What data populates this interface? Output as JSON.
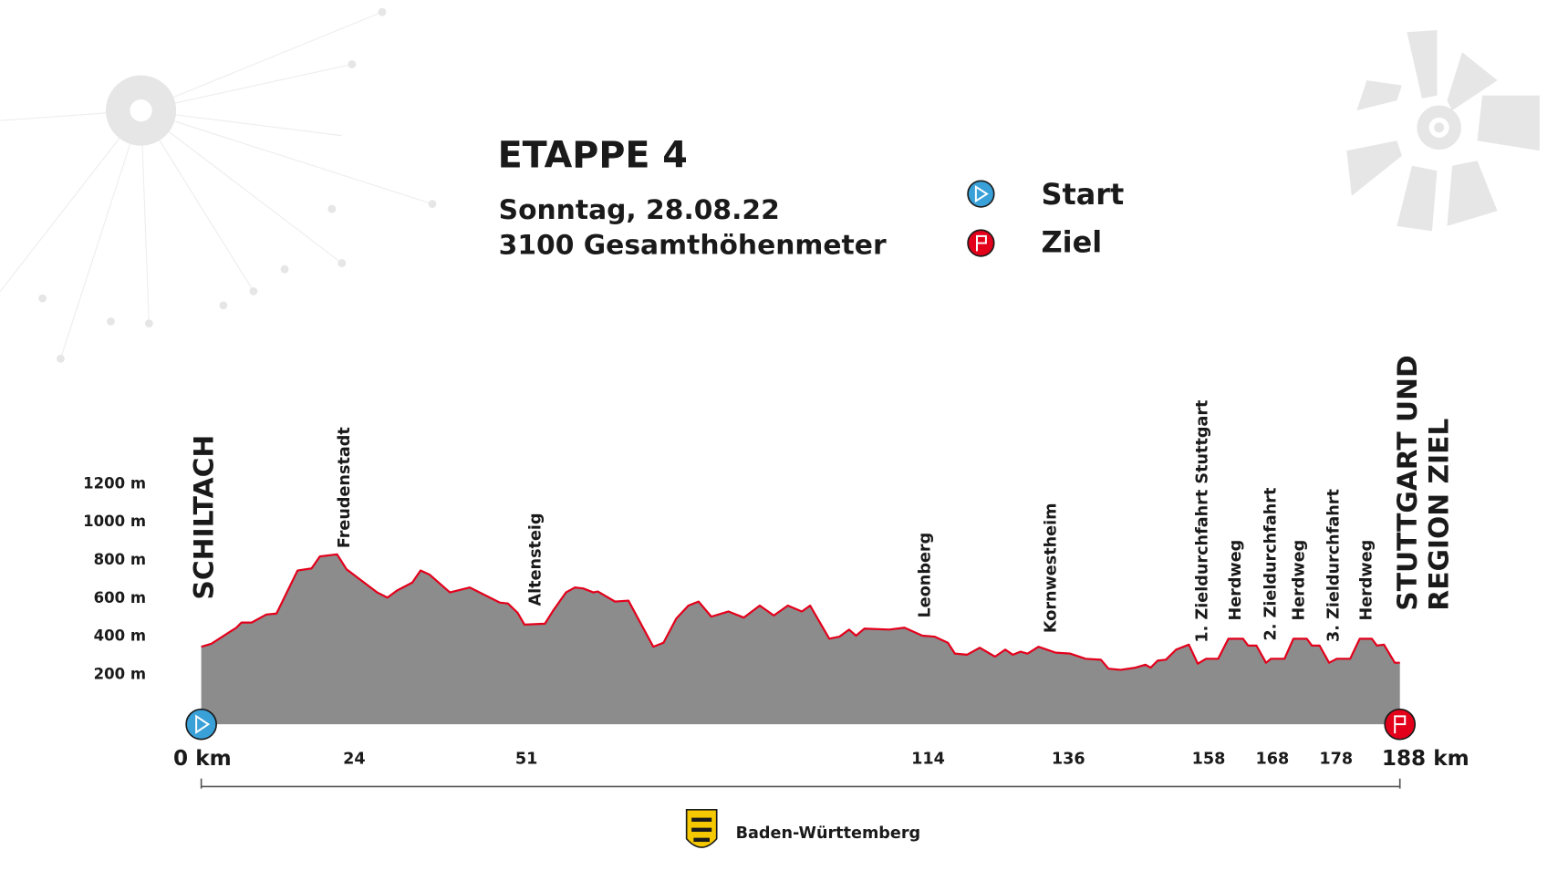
{
  "chart_data": {
    "type": "area",
    "title": "ETAPPE 4",
    "date": "Sonntag, 28.08.22",
    "subtitle": "3100 Gesamthöhenmeter",
    "legend": {
      "start": "Start",
      "finish": "Ziel"
    },
    "start_label": "SCHILTACH",
    "finish_label": [
      "STUTTGART UND",
      "REGION ZIEL"
    ],
    "footer": "Baden-Württemberg",
    "fill_color": "#8c8c8c",
    "line_color": "#e3001b",
    "xlim": [
      0,
      188
    ],
    "ylim": [
      -60,
      1200
    ],
    "xticks": [
      {
        "value": 0,
        "label": "0 km"
      },
      24,
      51,
      114,
      136,
      158,
      168,
      178,
      {
        "value": 188,
        "label": "188 km"
      }
    ],
    "yticks": [
      {
        "value": 200,
        "label": "200 m"
      },
      {
        "value": 400,
        "label": "400 m"
      },
      {
        "value": 600,
        "label": "600 m"
      },
      {
        "value": 800,
        "label": "800 m"
      },
      {
        "value": 1000,
        "label": "1000 m"
      },
      {
        "value": 1200,
        "label": "1200 m"
      }
    ],
    "annotations": [
      {
        "text": "Freudenstadt",
        "x": 22.5
      },
      {
        "text": "Altensteig",
        "x": 52.5
      },
      {
        "text": "Leonberg",
        "x": 113.6
      },
      {
        "text": "Kornwestheim",
        "x": 133.3
      },
      {
        "text": "1. Zieldurchfahrt Stuttgart",
        "x": 157.1
      },
      {
        "text": "Herdweg",
        "x": 162.3
      },
      {
        "text": "2. Zieldurchfahrt",
        "x": 167.8
      },
      {
        "text": "Herdweg",
        "x": 172.2
      },
      {
        "text": "3. Zieldurchfahrt",
        "x": 177.7
      },
      {
        "text": "Herdweg",
        "x": 182.8
      }
    ],
    "x": [
      0,
      1.6,
      5.5,
      6.3,
      7.9,
      10.2,
      11.8,
      15.1,
      17.3,
      18.6,
      21.3,
      22.8,
      27.6,
      29.2,
      30.7,
      33.1,
      34.4,
      35.8,
      39.0,
      42.1,
      46.8,
      48.1,
      49.6,
      50.7,
      53.9,
      55.2,
      57.2,
      58.6,
      59.9,
      61.5,
      62.2,
      64.9,
      67.0,
      70.9,
      72.5,
      74.5,
      76.4,
      78.0,
      80.0,
      82.7,
      85.1,
      87.6,
      89.8,
      92.0,
      94.2,
      95.5,
      98.5,
      100.1,
      101.6,
      102.7,
      104.0,
      107.9,
      110.3,
      113.1,
      115.0,
      117.1,
      118.2,
      120.1,
      122.1,
      124.5,
      126.1,
      127.3,
      128.5,
      129.6,
      131.3,
      134.0,
      136.3,
      138.7,
      141.1,
      142.3,
      144.2,
      146.5,
      148.1,
      148.9,
      150.0,
      151.3,
      152.9,
      154.9,
      156.3,
      157.6,
      159.5,
      161.1,
      163.4,
      164.2,
      165.5,
      167.0,
      167.8,
      169.9,
      171.3,
      173.4,
      174.2,
      175.4,
      176.9,
      178.1,
      180.2,
      181.7,
      183.6,
      184.4,
      185.5,
      187.2,
      188
    ],
    "values": [
      347,
      363,
      447,
      474,
      474,
      516,
      521,
      747,
      758,
      821,
      832,
      753,
      632,
      605,
      642,
      684,
      747,
      726,
      632,
      658,
      579,
      574,
      526,
      463,
      468,
      537,
      632,
      658,
      653,
      632,
      637,
      584,
      589,
      347,
      368,
      495,
      563,
      584,
      505,
      532,
      500,
      563,
      511,
      563,
      532,
      563,
      389,
      400,
      437,
      405,
      442,
      437,
      447,
      405,
      400,
      368,
      311,
      305,
      342,
      295,
      332,
      305,
      321,
      311,
      347,
      316,
      311,
      284,
      279,
      232,
      226,
      237,
      253,
      237,
      274,
      279,
      332,
      358,
      258,
      284,
      284,
      389,
      389,
      353,
      353,
      263,
      284,
      284,
      389,
      389,
      353,
      353,
      263,
      284,
      284,
      389,
      389,
      353,
      358,
      263,
      263
    ]
  }
}
